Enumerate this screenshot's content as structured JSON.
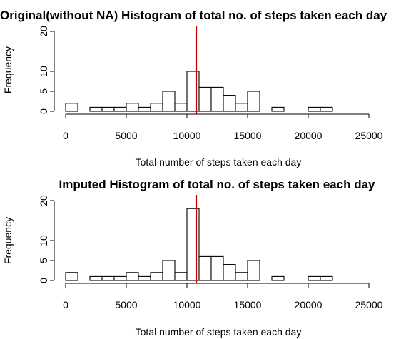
{
  "chart_data": [
    {
      "type": "bar",
      "title": "Original(without NA) Histogram of total no. of steps taken each day",
      "xlabel": "Total number of steps taken each day",
      "ylabel": "Frequency",
      "xlim": [
        0,
        25000
      ],
      "ylim": [
        0,
        20
      ],
      "xticks": [
        "0",
        "5000",
        "10000",
        "15000",
        "20000",
        "25000"
      ],
      "yticks": [
        "0",
        "5",
        "10",
        "20"
      ],
      "bin_width": 1000,
      "bin_start": 0,
      "values": [
        2,
        0,
        1,
        1,
        1,
        2,
        1,
        2,
        5,
        2,
        10,
        6,
        6,
        4,
        2,
        5,
        0,
        1,
        0,
        0,
        1,
        1
      ],
      "mean_line": 10766,
      "mean_line_color": "#cc0000",
      "grid": false
    },
    {
      "type": "bar",
      "title": "Imputed Histogram of total no. of steps taken each day",
      "xlabel": "Total number of steps taken each day",
      "ylabel": "Frequency",
      "xlim": [
        0,
        25000
      ],
      "ylim": [
        0,
        20
      ],
      "xticks": [
        "0",
        "5000",
        "10000",
        "15000",
        "20000",
        "25000"
      ],
      "yticks": [
        "0",
        "5",
        "10",
        "20"
      ],
      "bin_width": 1000,
      "bin_start": 0,
      "values": [
        2,
        0,
        1,
        1,
        1,
        2,
        1,
        2,
        5,
        2,
        18,
        6,
        6,
        4,
        2,
        5,
        0,
        1,
        0,
        0,
        1,
        1
      ],
      "mean_line": 10766,
      "mean_line_color": "#cc0000",
      "grid": false
    }
  ]
}
